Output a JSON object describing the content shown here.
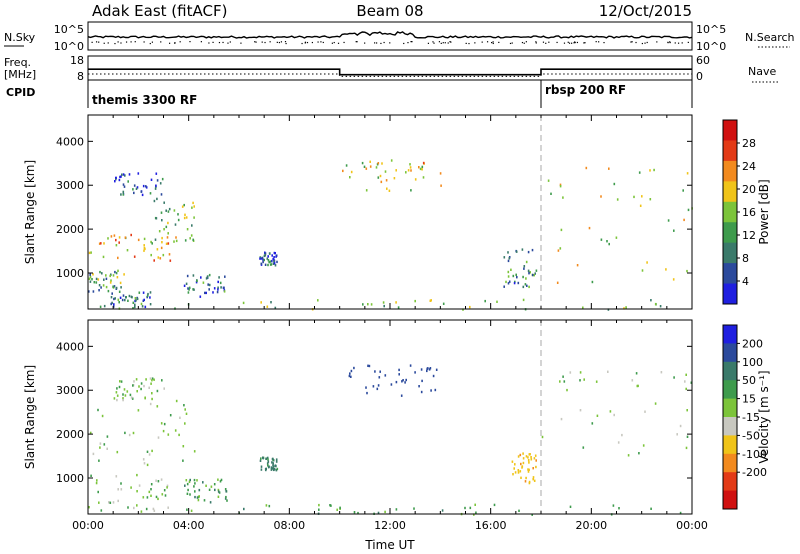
{
  "header": {
    "station": "Adak East (fitACF)",
    "beam": "Beam 08",
    "date": "12/Oct/2015"
  },
  "top_panels": {
    "nsky_label": "N.Sky",
    "nsky_ticks": [
      "10^5",
      "10^0"
    ],
    "nsearch_label": "N.Search",
    "nsearch_ticks": [
      "10^5",
      "10^0"
    ],
    "freq_label_1": "Freq.",
    "freq_label_2": "[MHz]",
    "freq_ticks": [
      "18",
      "8"
    ],
    "nave_label": "Nave",
    "nave_ticks": [
      "60",
      "0"
    ],
    "cpid_label": "CPID",
    "cpid_segments": [
      {
        "label": "themis 3300 RF",
        "start": 0,
        "end": 18
      },
      {
        "label": "rbsp 200 RF",
        "start": 18,
        "end": 24
      }
    ],
    "freq_segments": [
      {
        "start": 0,
        "end": 10,
        "freq": 12.5,
        "nave": 15
      },
      {
        "start": 10,
        "end": 18,
        "freq": 10.2,
        "nave": 9
      },
      {
        "start": 18,
        "end": 24,
        "freq": 12.5,
        "nave": 15
      }
    ]
  },
  "chart_data": [
    {
      "type": "heatmap",
      "parameter": "power",
      "ylabel": "Slant Range [km]",
      "yticks": [
        "1000",
        "2000",
        "3000",
        "4000"
      ],
      "ylim": [
        180,
        4600
      ],
      "xlim": [
        0,
        24
      ],
      "colorbar_label": "Power [dB]",
      "colorbar_ticks": [
        "4",
        "8",
        "12",
        "16",
        "20",
        "24",
        "28"
      ],
      "colorbar_range": [
        0,
        32
      ],
      "colors": [
        "#1f1fe0",
        "#2b4a9c",
        "#3a7a6a",
        "#3e9b4c",
        "#7cc43a",
        "#f0c419",
        "#f28a1e",
        "#e33a16",
        "#d01010"
      ],
      "scatter_regions": [
        {
          "t": [
            0.0,
            3.5
          ],
          "r": [
            1300,
            1900
          ],
          "v": 20
        },
        {
          "t": [
            2.5,
            4.3
          ],
          "r": [
            1700,
            2800
          ],
          "v": 14
        },
        {
          "t": [
            0.0,
            1.5
          ],
          "r": [
            600,
            1100
          ],
          "v": 12
        },
        {
          "t": [
            0.8,
            2.5
          ],
          "r": [
            250,
            600
          ],
          "v": 8
        },
        {
          "t": [
            3.8,
            5.5
          ],
          "r": [
            450,
            1000
          ],
          "v": 8
        },
        {
          "t": [
            6.8,
            7.5
          ],
          "r": [
            1200,
            1500
          ],
          "v": 6
        },
        {
          "t": [
            1.0,
            3.0
          ],
          "r": [
            2800,
            3300
          ],
          "v": 5
        },
        {
          "t": [
            10.0,
            14.0
          ],
          "r": [
            2900,
            3600
          ],
          "v": 18
        },
        {
          "t": [
            16.5,
            17.8
          ],
          "r": [
            700,
            1600
          ],
          "v": 10
        },
        {
          "t": [
            18.0,
            24.0
          ],
          "r": [
            800,
            3500
          ],
          "v": 18
        },
        {
          "t": [
            0.0,
            24.0
          ],
          "r": [
            190,
            420
          ],
          "v": 14
        }
      ]
    },
    {
      "type": "heatmap",
      "parameter": "velocity",
      "ylabel": "Slant Range [km]",
      "yticks": [
        "1000",
        "2000",
        "3000",
        "4000"
      ],
      "ylim": [
        180,
        4600
      ],
      "xlim": [
        0,
        24
      ],
      "xticks": [
        "00:00",
        "04:00",
        "08:00",
        "12:00",
        "16:00",
        "20:00",
        "00:00"
      ],
      "xlabel": "Time UT",
      "colorbar_label": "Velocity [m s⁻¹]",
      "colorbar_ticks": [
        "200",
        "100",
        "50",
        "15",
        "-15",
        "-50",
        "-100",
        "-200"
      ],
      "colors": [
        "#1f1fe0",
        "#2b4a9c",
        "#3a7a6a",
        "#3e9b4c",
        "#7cc43a",
        "#c8c8c0",
        "#f0c419",
        "#f28a1e",
        "#e33a16",
        "#d01010"
      ],
      "scatter_regions": [
        {
          "t": [
            0.0,
            4.3
          ],
          "r": [
            1300,
            2800
          ],
          "v": 0
        },
        {
          "t": [
            0.0,
            3.5
          ],
          "r": [
            250,
            1100
          ],
          "v": 0
        },
        {
          "t": [
            1.0,
            3.0
          ],
          "r": [
            2800,
            3300
          ],
          "v": 0
        },
        {
          "t": [
            6.8,
            7.5
          ],
          "r": [
            1200,
            1500
          ],
          "v": 70
        },
        {
          "t": [
            3.8,
            5.5
          ],
          "r": [
            450,
            1000
          ],
          "v": 30
        },
        {
          "t": [
            10.0,
            14.0
          ],
          "r": [
            2900,
            3600
          ],
          "v": 150
        },
        {
          "t": [
            16.8,
            17.8
          ],
          "r": [
            900,
            1600
          ],
          "v": -80
        },
        {
          "t": [
            18.0,
            24.0
          ],
          "r": [
            1500,
            3500
          ],
          "v": 0
        },
        {
          "t": [
            0.0,
            24.0
          ],
          "r": [
            190,
            420
          ],
          "v": 30
        }
      ]
    }
  ]
}
